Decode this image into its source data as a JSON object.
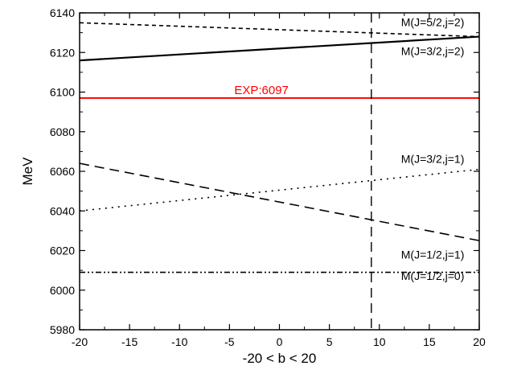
{
  "chart_data": {
    "type": "line",
    "xlabel": "-20 < b < 20",
    "ylabel": "MeV",
    "xlim": [
      -20,
      20
    ],
    "ylim": [
      5980,
      6140
    ],
    "xticks": [
      "-20",
      "-15",
      "-10",
      "-5",
      "0",
      "5",
      "10",
      "15",
      "20"
    ],
    "yticks": [
      "5980",
      "6000",
      "6020",
      "6040",
      "6060",
      "6080",
      "6100",
      "6120",
      "6140"
    ],
    "grid": false,
    "series": [
      {
        "name": "M(J=5/2,j=2)",
        "style": "dashed-short",
        "color": "#000000",
        "x": [
          -20,
          20
        ],
        "y": [
          6135,
          6128
        ]
      },
      {
        "name": "M(J=3/2,j=2)",
        "style": "solid",
        "color": "#000000",
        "x": [
          -20,
          20
        ],
        "y": [
          6116,
          6128
        ]
      },
      {
        "name": "M(J=3/2,j=1)",
        "style": "dotted",
        "color": "#000000",
        "x": [
          -20,
          20
        ],
        "y": [
          6040,
          6061
        ]
      },
      {
        "name": "M(J=1/2,j=1)",
        "style": "dashed",
        "color": "#000000",
        "x": [
          -20,
          20
        ],
        "y": [
          6064,
          6025
        ]
      },
      {
        "name": "M(J=1/2,j=0)",
        "style": "dash-dot-dot",
        "color": "#000000",
        "x": [
          -20,
          20
        ],
        "y": [
          6009,
          6009
        ]
      }
    ],
    "reference_lines": [
      {
        "label": "EXP:6097",
        "orientation": "horizontal",
        "value": 6097,
        "color": "#ff0000",
        "style": "solid"
      },
      {
        "label": "",
        "orientation": "vertical",
        "value": 9.2,
        "color": "#000000",
        "style": "dashed"
      }
    ]
  }
}
